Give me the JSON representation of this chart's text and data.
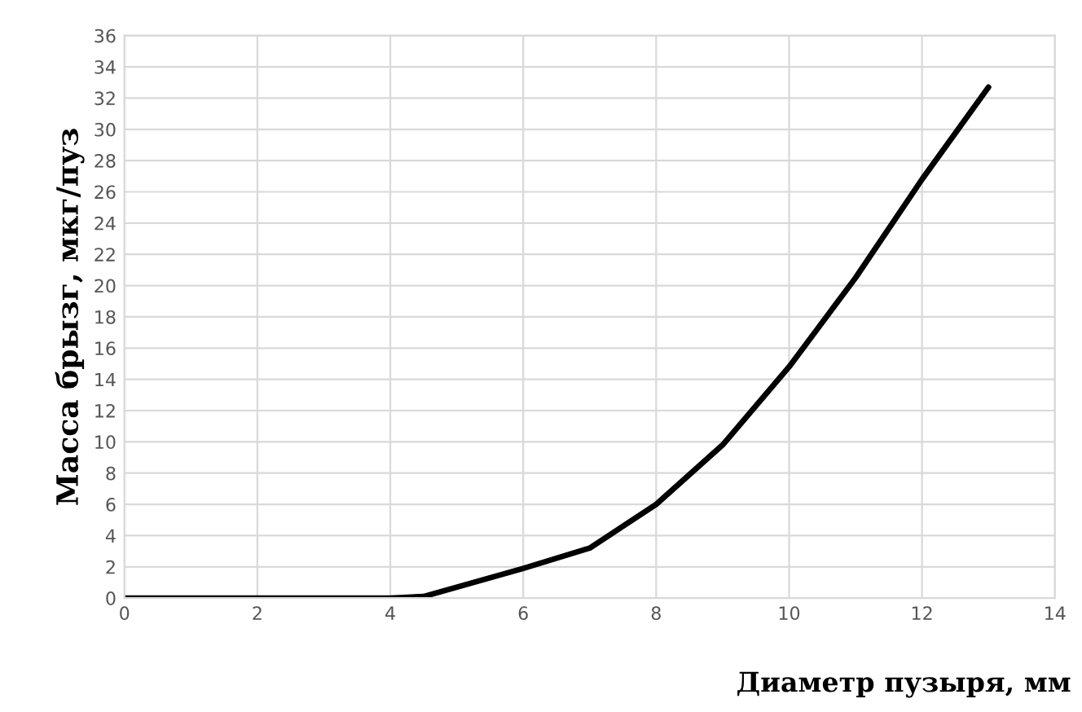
{
  "chart_data": {
    "type": "line",
    "xlabel": "Диаметр пузыря, мм",
    "ylabel": "Масса брызг, мкг/пуз",
    "series": [
      {
        "color": "#000000",
        "x": [
          0,
          4,
          4.5,
          6,
          7,
          8,
          9,
          10,
          11,
          12,
          13
        ],
        "values": [
          0,
          0,
          0.1,
          1.9,
          3.2,
          6,
          9.8,
          14.8,
          20.5,
          26.8,
          32.7
        ]
      }
    ],
    "xlim": [
      0,
      14
    ],
    "xticks": [
      0,
      2,
      4,
      6,
      8,
      10,
      12,
      14
    ],
    "ylim": [
      0,
      36
    ],
    "yticks": [
      0,
      2,
      4,
      6,
      8,
      10,
      12,
      14,
      16,
      18,
      20,
      22,
      24,
      26,
      28,
      30,
      32,
      34,
      36
    ],
    "grid": true,
    "line_style": "solid"
  }
}
